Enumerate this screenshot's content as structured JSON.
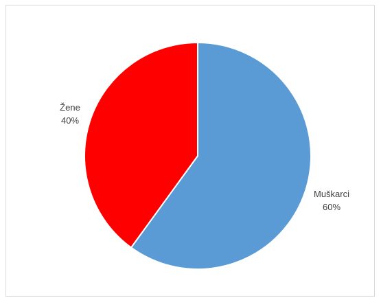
{
  "chart_data": {
    "type": "pie",
    "categories": [
      "Muškarci",
      "Žene"
    ],
    "values": [
      60,
      40
    ],
    "percent_labels": [
      "60%",
      "40%"
    ],
    "colors": [
      "#5b9bd5",
      "#ff0000"
    ],
    "legend": "none",
    "start": "12 o'clock",
    "direction": "clockwise"
  }
}
